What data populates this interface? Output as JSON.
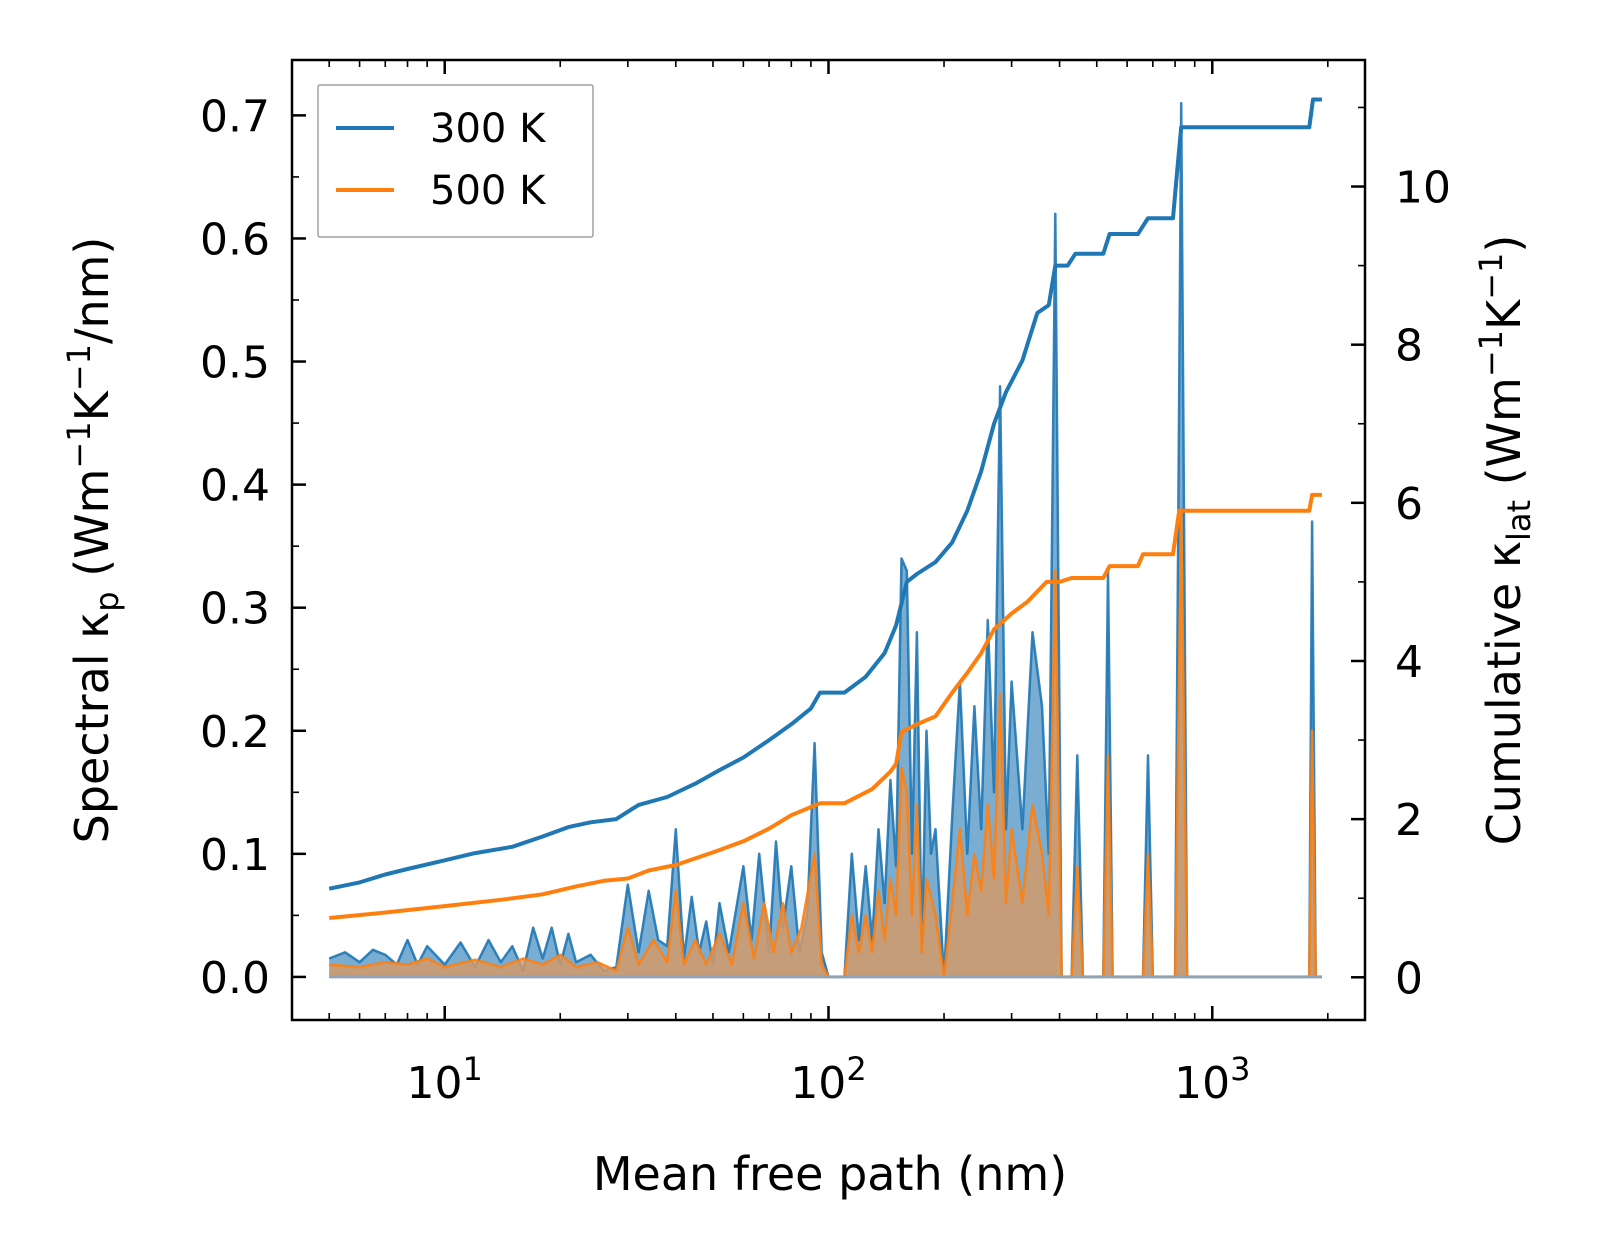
{
  "chart_data": {
    "type": "line",
    "xlabel": "Mean free path (nm)",
    "ylabel": {
      "base": "Spectral κ",
      "sub": "p",
      "unit_open": " (Wm",
      "exp1": "−1",
      "unit_mid": "K",
      "exp2": "−1",
      "unit_close": "/nm)"
    },
    "y2label": {
      "base": "Cumulative κ",
      "sub": "lat",
      "unit_open": " (Wm",
      "exp1": "−1",
      "unit_mid": "K",
      "exp2": "−1",
      "unit_close": ")"
    },
    "x_scale": "log",
    "xlim": [
      4,
      2500
    ],
    "ylim": [
      -0.035,
      0.745
    ],
    "y2lim": [
      -0.54,
      11.6
    ],
    "x_ticks": [
      {
        "base": "10",
        "exp": "1",
        "value": 10
      },
      {
        "base": "10",
        "exp": "2",
        "value": 100
      },
      {
        "base": "10",
        "exp": "3",
        "value": 1000
      }
    ],
    "y_ticks": [
      "0.0",
      "0.1",
      "0.2",
      "0.3",
      "0.4",
      "0.5",
      "0.6",
      "0.7"
    ],
    "y2_ticks": [
      "0",
      "2",
      "4",
      "6",
      "8",
      "10"
    ],
    "legend": {
      "location": "upper-left",
      "entries": [
        {
          "label": "300 K",
          "color": "#1f77b4"
        },
        {
          "label": "500 K",
          "color": "#ff7f0e"
        }
      ]
    },
    "series": [
      {
        "name": "300 K",
        "color": "#1f77b4",
        "cumulative": [
          [
            5,
            1.12
          ],
          [
            6,
            1.2
          ],
          [
            7,
            1.3
          ],
          [
            8,
            1.37
          ],
          [
            10,
            1.48
          ],
          [
            12,
            1.57
          ],
          [
            15,
            1.65
          ],
          [
            18,
            1.78
          ],
          [
            21,
            1.9
          ],
          [
            24,
            1.96
          ],
          [
            28,
            2.0
          ],
          [
            32,
            2.18
          ],
          [
            38,
            2.28
          ],
          [
            45,
            2.45
          ],
          [
            52,
            2.62
          ],
          [
            60,
            2.78
          ],
          [
            70,
            3.0
          ],
          [
            80,
            3.2
          ],
          [
            90,
            3.4
          ],
          [
            95,
            3.6
          ],
          [
            110,
            3.6
          ],
          [
            125,
            3.8
          ],
          [
            140,
            4.1
          ],
          [
            150,
            4.45
          ],
          [
            160,
            5.0
          ],
          [
            170,
            5.1
          ],
          [
            190,
            5.25
          ],
          [
            210,
            5.5
          ],
          [
            230,
            5.9
          ],
          [
            250,
            6.4
          ],
          [
            270,
            7.0
          ],
          [
            290,
            7.4
          ],
          [
            320,
            7.8
          ],
          [
            350,
            8.4
          ],
          [
            375,
            8.5
          ],
          [
            390,
            9.0
          ],
          [
            420,
            9.0
          ],
          [
            440,
            9.15
          ],
          [
            520,
            9.15
          ],
          [
            540,
            9.4
          ],
          [
            640,
            9.4
          ],
          [
            680,
            9.6
          ],
          [
            790,
            9.6
          ],
          [
            810,
            10.2
          ],
          [
            830,
            10.75
          ],
          [
            1790,
            10.75
          ],
          [
            1830,
            11.1
          ],
          [
            1930,
            11.1
          ]
        ],
        "spectral": [
          [
            5,
            0.015
          ],
          [
            5.5,
            0.02
          ],
          [
            6,
            0.012
          ],
          [
            6.5,
            0.022
          ],
          [
            7,
            0.018
          ],
          [
            7.5,
            0.01
          ],
          [
            8,
            0.03
          ],
          [
            8.5,
            0.01
          ],
          [
            9,
            0.025
          ],
          [
            10,
            0.01
          ],
          [
            11,
            0.028
          ],
          [
            12,
            0.008
          ],
          [
            13,
            0.03
          ],
          [
            14,
            0.012
          ],
          [
            15,
            0.025
          ],
          [
            16,
            0.005
          ],
          [
            17,
            0.04
          ],
          [
            18,
            0.015
          ],
          [
            19,
            0.04
          ],
          [
            20,
            0.01
          ],
          [
            21,
            0.035
          ],
          [
            22,
            0.012
          ],
          [
            24,
            0.018
          ],
          [
            26,
            0.005
          ],
          [
            28,
            0.008
          ],
          [
            30,
            0.075
          ],
          [
            32,
            0.02
          ],
          [
            34,
            0.07
          ],
          [
            36,
            0.03
          ],
          [
            38,
            0.025
          ],
          [
            40,
            0.12
          ],
          [
            42,
            0.015
          ],
          [
            44,
            0.065
          ],
          [
            46,
            0.02
          ],
          [
            48,
            0.045
          ],
          [
            50,
            0.01
          ],
          [
            52,
            0.06
          ],
          [
            55,
            0.02
          ],
          [
            60,
            0.09
          ],
          [
            63,
            0.03
          ],
          [
            66,
            0.1
          ],
          [
            70,
            0.02
          ],
          [
            73,
            0.11
          ],
          [
            76,
            0.04
          ],
          [
            80,
            0.09
          ],
          [
            84,
            0.02
          ],
          [
            88,
            0.05
          ],
          [
            92,
            0.19
          ],
          [
            96,
            0.02
          ],
          [
            100,
            0.0
          ],
          [
            110,
            0.0
          ],
          [
            115,
            0.1
          ],
          [
            120,
            0.03
          ],
          [
            125,
            0.09
          ],
          [
            130,
            0.03
          ],
          [
            135,
            0.12
          ],
          [
            140,
            0.06
          ],
          [
            145,
            0.16
          ],
          [
            150,
            0.09
          ],
          [
            155,
            0.34
          ],
          [
            160,
            0.33
          ],
          [
            165,
            0.1
          ],
          [
            170,
            0.28
          ],
          [
            175,
            0.02
          ],
          [
            180,
            0.2
          ],
          [
            185,
            0.1
          ],
          [
            190,
            0.12
          ],
          [
            200,
            0.0
          ],
          [
            210,
            0.13
          ],
          [
            220,
            0.24
          ],
          [
            230,
            0.1
          ],
          [
            240,
            0.22
          ],
          [
            250,
            0.12
          ],
          [
            260,
            0.29
          ],
          [
            270,
            0.15
          ],
          [
            280,
            0.48
          ],
          [
            290,
            0.12
          ],
          [
            300,
            0.24
          ],
          [
            320,
            0.12
          ],
          [
            340,
            0.28
          ],
          [
            360,
            0.22
          ],
          [
            375,
            0.1
          ],
          [
            390,
            0.62
          ],
          [
            405,
            0.0
          ],
          [
            430,
            0.0
          ],
          [
            445,
            0.18
          ],
          [
            460,
            0.0
          ],
          [
            520,
            0.0
          ],
          [
            535,
            0.33
          ],
          [
            550,
            0.0
          ],
          [
            660,
            0.0
          ],
          [
            680,
            0.18
          ],
          [
            700,
            0.0
          ],
          [
            800,
            0.0
          ],
          [
            830,
            0.71
          ],
          [
            860,
            0.0
          ],
          [
            1790,
            0.0
          ],
          [
            1820,
            0.37
          ],
          [
            1860,
            0.0
          ],
          [
            1930,
            0.0
          ]
        ]
      },
      {
        "name": "500 K",
        "color": "#ff7f0e",
        "cumulative": [
          [
            5,
            0.75
          ],
          [
            7,
            0.82
          ],
          [
            10,
            0.9
          ],
          [
            14,
            0.98
          ],
          [
            18,
            1.05
          ],
          [
            22,
            1.15
          ],
          [
            26,
            1.22
          ],
          [
            30,
            1.25
          ],
          [
            34,
            1.35
          ],
          [
            40,
            1.42
          ],
          [
            50,
            1.58
          ],
          [
            60,
            1.72
          ],
          [
            70,
            1.88
          ],
          [
            80,
            2.05
          ],
          [
            95,
            2.2
          ],
          [
            110,
            2.2
          ],
          [
            130,
            2.38
          ],
          [
            145,
            2.6
          ],
          [
            150,
            2.7
          ],
          [
            155,
            3.1
          ],
          [
            170,
            3.2
          ],
          [
            190,
            3.3
          ],
          [
            210,
            3.6
          ],
          [
            230,
            3.85
          ],
          [
            250,
            4.1
          ],
          [
            270,
            4.4
          ],
          [
            300,
            4.6
          ],
          [
            330,
            4.75
          ],
          [
            370,
            5.0
          ],
          [
            400,
            5.0
          ],
          [
            430,
            5.05
          ],
          [
            520,
            5.05
          ],
          [
            540,
            5.2
          ],
          [
            640,
            5.2
          ],
          [
            660,
            5.35
          ],
          [
            790,
            5.35
          ],
          [
            820,
            5.9
          ],
          [
            1790,
            5.9
          ],
          [
            1820,
            6.1
          ],
          [
            1930,
            6.1
          ]
        ],
        "spectral": [
          [
            5,
            0.01
          ],
          [
            6,
            0.008
          ],
          [
            7,
            0.012
          ],
          [
            8,
            0.01
          ],
          [
            9,
            0.015
          ],
          [
            10,
            0.008
          ],
          [
            12,
            0.014
          ],
          [
            14,
            0.008
          ],
          [
            16,
            0.015
          ],
          [
            18,
            0.01
          ],
          [
            20,
            0.018
          ],
          [
            22,
            0.008
          ],
          [
            25,
            0.012
          ],
          [
            28,
            0.005
          ],
          [
            30,
            0.04
          ],
          [
            32,
            0.01
          ],
          [
            35,
            0.03
          ],
          [
            38,
            0.012
          ],
          [
            40,
            0.07
          ],
          [
            42,
            0.01
          ],
          [
            45,
            0.03
          ],
          [
            48,
            0.01
          ],
          [
            52,
            0.035
          ],
          [
            56,
            0.01
          ],
          [
            60,
            0.06
          ],
          [
            64,
            0.015
          ],
          [
            68,
            0.06
          ],
          [
            72,
            0.02
          ],
          [
            76,
            0.06
          ],
          [
            80,
            0.02
          ],
          [
            85,
            0.04
          ],
          [
            92,
            0.1
          ],
          [
            96,
            0.01
          ],
          [
            100,
            0.0
          ],
          [
            110,
            0.0
          ],
          [
            115,
            0.05
          ],
          [
            120,
            0.02
          ],
          [
            125,
            0.05
          ],
          [
            130,
            0.02
          ],
          [
            135,
            0.07
          ],
          [
            140,
            0.03
          ],
          [
            145,
            0.08
          ],
          [
            150,
            0.05
          ],
          [
            155,
            0.17
          ],
          [
            160,
            0.15
          ],
          [
            165,
            0.05
          ],
          [
            170,
            0.14
          ],
          [
            175,
            0.02
          ],
          [
            180,
            0.08
          ],
          [
            190,
            0.05
          ],
          [
            200,
            0.0
          ],
          [
            210,
            0.06
          ],
          [
            220,
            0.12
          ],
          [
            230,
            0.05
          ],
          [
            240,
            0.1
          ],
          [
            250,
            0.07
          ],
          [
            260,
            0.14
          ],
          [
            270,
            0.08
          ],
          [
            280,
            0.23
          ],
          [
            290,
            0.06
          ],
          [
            300,
            0.12
          ],
          [
            320,
            0.06
          ],
          [
            340,
            0.14
          ],
          [
            360,
            0.1
          ],
          [
            375,
            0.05
          ],
          [
            390,
            0.33
          ],
          [
            405,
            0.0
          ],
          [
            430,
            0.0
          ],
          [
            445,
            0.09
          ],
          [
            460,
            0.0
          ],
          [
            520,
            0.0
          ],
          [
            535,
            0.18
          ],
          [
            550,
            0.0
          ],
          [
            660,
            0.0
          ],
          [
            680,
            0.1
          ],
          [
            700,
            0.0
          ],
          [
            800,
            0.0
          ],
          [
            830,
            0.38
          ],
          [
            860,
            0.0
          ],
          [
            1790,
            0.0
          ],
          [
            1820,
            0.2
          ],
          [
            1860,
            0.0
          ],
          [
            1930,
            0.0
          ]
        ]
      }
    ]
  }
}
